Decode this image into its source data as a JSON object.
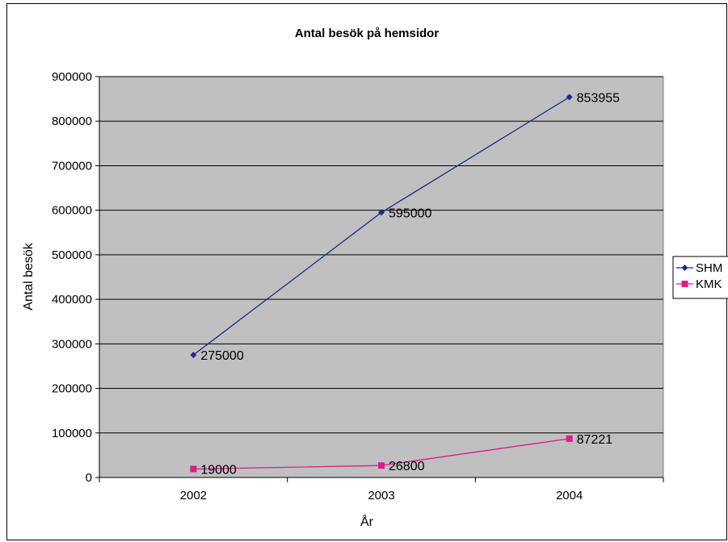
{
  "chart_data": {
    "type": "line",
    "title": "Antal besök på hemsidor",
    "xlabel": "År",
    "ylabel": "Antal besök",
    "categories": [
      "2002",
      "2003",
      "2004"
    ],
    "ylim": [
      0,
      900000
    ],
    "yticks": [
      0,
      100000,
      200000,
      300000,
      400000,
      500000,
      600000,
      700000,
      800000,
      900000
    ],
    "grid": true,
    "legend_position": "right",
    "plot_background": "#c0c0c0",
    "series": [
      {
        "name": "SHM",
        "values": [
          275000,
          595000,
          853955
        ],
        "color": "#1f2a8c",
        "marker": "diamond"
      },
      {
        "name": "KMK",
        "values": [
          19000,
          26800,
          87221
        ],
        "color": "#e0198c",
        "marker": "square"
      }
    ]
  }
}
